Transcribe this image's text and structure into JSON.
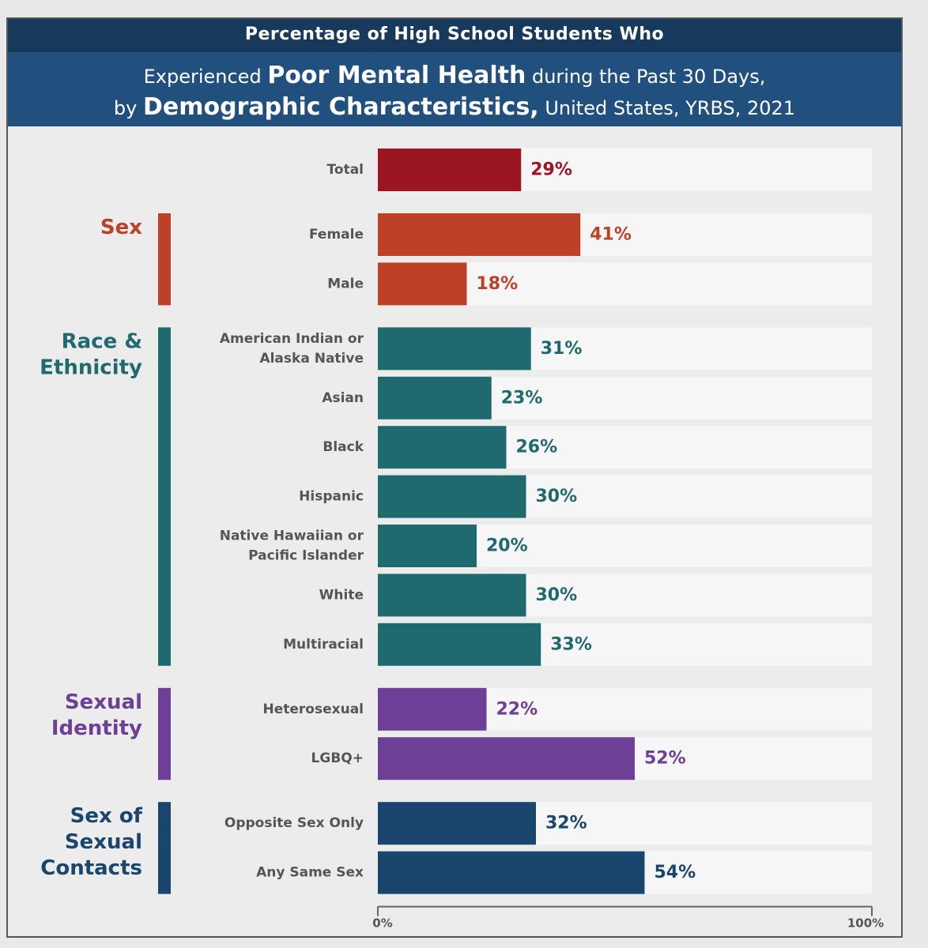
{
  "header": {
    "line1": "Percentage of High School Students Who",
    "line2_pre": "Experienced",
    "line2_bold": "Poor Mental Health",
    "line2_post": "during the Past 30 Days,",
    "line3_pre": "by",
    "line3_bold": "Demographic Characteristics,",
    "line3_post": "United States, YRBS, 2021"
  },
  "colors": {
    "total": "#9c1522",
    "sex": "#bd4128",
    "race": "#1f6a6f",
    "sexual_identity": "#6e3f96",
    "sexual_contacts": "#1a456e"
  },
  "chart_data": {
    "type": "bar",
    "orientation": "horizontal",
    "title": "Percentage of High School Students Who Experienced Poor Mental Health during the Past 30 Days, by Demographic Characteristics, United States, YRBS, 2021",
    "xlim": [
      0,
      100
    ],
    "x_ticks": [
      "0%",
      "100%"
    ],
    "groups": [
      {
        "name": "",
        "color_key": "total",
        "items": [
          {
            "label": [
              "Total"
            ],
            "value": 29,
            "value_label": "29%"
          }
        ]
      },
      {
        "name": [
          "Sex"
        ],
        "color_key": "sex",
        "items": [
          {
            "label": [
              "Female"
            ],
            "value": 41,
            "value_label": "41%"
          },
          {
            "label": [
              "Male"
            ],
            "value": 18,
            "value_label": "18%"
          }
        ]
      },
      {
        "name": [
          "Race &",
          "Ethnicity"
        ],
        "color_key": "race",
        "items": [
          {
            "label": [
              "American Indian or",
              "Alaska Native"
            ],
            "value": 31,
            "value_label": "31%"
          },
          {
            "label": [
              "Asian"
            ],
            "value": 23,
            "value_label": "23%"
          },
          {
            "label": [
              "Black"
            ],
            "value": 26,
            "value_label": "26%"
          },
          {
            "label": [
              "Hispanic"
            ],
            "value": 30,
            "value_label": "30%"
          },
          {
            "label": [
              "Native Hawaiian or",
              "Pacific Islander"
            ],
            "value": 20,
            "value_label": "20%"
          },
          {
            "label": [
              "White"
            ],
            "value": 30,
            "value_label": "30%"
          },
          {
            "label": [
              "Multiracial"
            ],
            "value": 33,
            "value_label": "33%"
          }
        ]
      },
      {
        "name": [
          "Sexual",
          "Identity"
        ],
        "color_key": "sexual_identity",
        "items": [
          {
            "label": [
              "Heterosexual"
            ],
            "value": 22,
            "value_label": "22%"
          },
          {
            "label": [
              "LGBQ+"
            ],
            "value": 52,
            "value_label": "52%"
          }
        ]
      },
      {
        "name": [
          "Sex of",
          "Sexual",
          "Contacts"
        ],
        "color_key": "sexual_contacts",
        "items": [
          {
            "label": [
              "Opposite Sex Only"
            ],
            "value": 32,
            "value_label": "32%"
          },
          {
            "label": [
              "Any Same Sex"
            ],
            "value": 54,
            "value_label": "54%"
          }
        ]
      }
    ]
  }
}
